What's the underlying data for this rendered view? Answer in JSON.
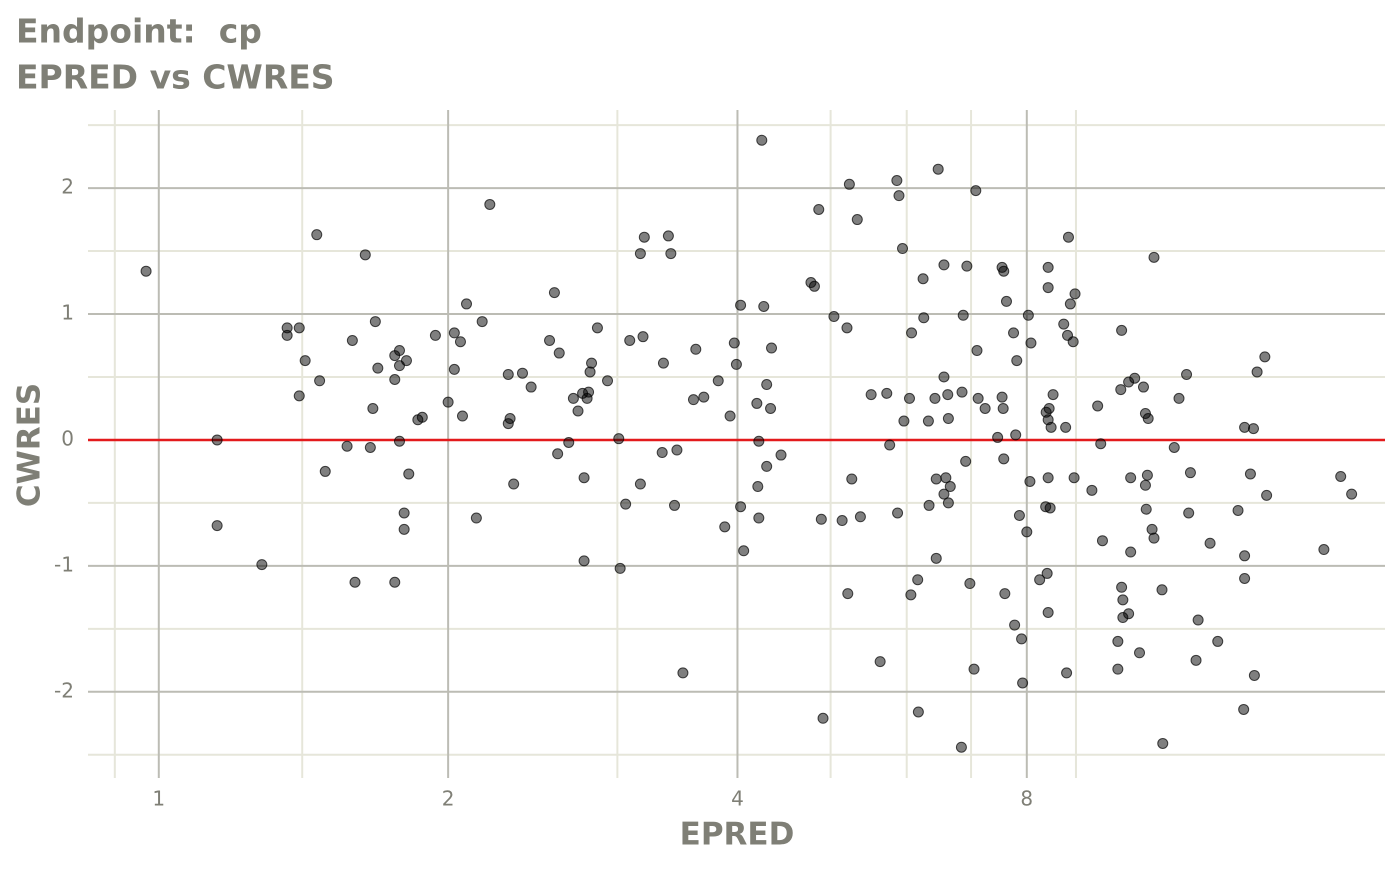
{
  "chart_data": {
    "type": "scatter",
    "title": "Endpoint:  cp",
    "subtitle": "EPRED vs CWRES",
    "x_label": "EPRED",
    "y_label": "CWRES",
    "x_log_base": 2,
    "xlim": [
      0.844,
      18.87
    ],
    "ylim": [
      -2.74,
      2.62
    ],
    "xticks": [
      1,
      2,
      4,
      8
    ],
    "yticks": [
      -2,
      -1,
      0,
      1,
      2
    ],
    "x_minor_grid": [
      0.9,
      1.41,
      3,
      5,
      6,
      7,
      9
    ],
    "y_minor_grid": [
      -2.5,
      -1.5,
      -0.5,
      0.5,
      1.5,
      2.5
    ],
    "grid": true,
    "color": "#000000",
    "opacity": 0.5,
    "hline": 0,
    "hline_color": "#e31a1c",
    "x": [
      0.97,
      1.15,
      1.15,
      1.28,
      1.36,
      1.36,
      1.4,
      1.4,
      1.42,
      1.46,
      1.47,
      1.49,
      1.57,
      1.59,
      1.6,
      1.64,
      1.66,
      1.67,
      1.68,
      1.69,
      1.76,
      1.76,
      1.76,
      1.78,
      1.78,
      1.78,
      1.8,
      1.8,
      1.81,
      1.82,
      1.86,
      1.88,
      1.94,
      2.0,
      2.03,
      2.03,
      2.06,
      2.07,
      2.09,
      2.14,
      2.17,
      2.21,
      2.31,
      2.31,
      2.32,
      2.34,
      2.39,
      2.44,
      2.55,
      2.58,
      2.6,
      2.61,
      2.67,
      2.7,
      2.73,
      2.76,
      2.77,
      2.77,
      2.79,
      2.8,
      2.81,
      2.82,
      2.86,
      2.93,
      3.01,
      3.02,
      3.06,
      3.09,
      3.17,
      3.17,
      3.19,
      3.2,
      3.34,
      3.35,
      3.39,
      3.41,
      3.44,
      3.46,
      3.51,
      3.6,
      3.62,
      3.69,
      3.82,
      3.88,
      3.93,
      3.97,
      3.99,
      4.03,
      4.03,
      4.06,
      4.19,
      4.21,
      4.2,
      4.21,
      4.24,
      4.26,
      4.29,
      4.29,
      4.33,
      4.34,
      4.44,
      4.77,
      4.81,
      4.86,
      4.89,
      4.91,
      5.04,
      5.14,
      5.2,
      5.21,
      5.23,
      5.26,
      5.33,
      5.37,
      5.51,
      5.63,
      5.72,
      5.76,
      5.86,
      5.87,
      5.89,
      5.94,
      5.96,
      6.04,
      6.06,
      6.07,
      6.16,
      6.17,
      6.24,
      6.25,
      6.32,
      6.33,
      6.42,
      6.44,
      6.44,
      6.47,
      6.56,
      6.56,
      6.56,
      6.59,
      6.62,
      6.63,
      6.63,
      6.66,
      6.85,
      6.87,
      6.84,
      6.91,
      6.93,
      6.98,
      7.05,
      7.08,
      7.1,
      7.12,
      7.24,
      7.46,
      7.54,
      7.54,
      7.56,
      7.57,
      7.57,
      7.59,
      7.62,
      7.75,
      7.77,
      7.79,
      7.81,
      7.86,
      7.9,
      7.92,
      8.0,
      8.03,
      8.06,
      8.08,
      8.25,
      8.37,
      8.38,
      8.4,
      8.42,
      8.42,
      8.42,
      8.42,
      8.42,
      8.44,
      8.46,
      8.48,
      8.52,
      8.74,
      8.78,
      8.8,
      8.82,
      8.84,
      8.88,
      8.94,
      8.96,
      8.98,
      9.35,
      9.48,
      9.55,
      9.59,
      9.95,
      9.95,
      10.02,
      10.04,
      10.04,
      10.07,
      10.07,
      10.21,
      10.21,
      10.26,
      10.26,
      10.36,
      10.48,
      10.58,
      10.63,
      10.63,
      10.65,
      10.68,
      10.7,
      10.8,
      10.85,
      10.85,
      11.06,
      11.08,
      11.39,
      11.52,
      11.73,
      11.79,
      11.84,
      12.0,
      12.06,
      12.41,
      12.64,
      13.27,
      13.45,
      13.48,
      13.48,
      13.48,
      13.67,
      13.77,
      13.8,
      13.89,
      14.15,
      14.21,
      16.3,
      16.97,
      17.42
    ],
    "y": [
      1.34,
      0.0,
      -0.68,
      -0.99,
      0.89,
      0.83,
      0.89,
      0.35,
      0.63,
      1.63,
      0.47,
      -0.25,
      -0.05,
      0.79,
      -1.13,
      1.47,
      -0.06,
      0.25,
      0.94,
      0.57,
      0.48,
      0.67,
      -1.13,
      0.59,
      0.71,
      -0.01,
      -0.71,
      -0.58,
      0.63,
      -0.27,
      0.16,
      0.18,
      0.83,
      0.3,
      0.56,
      0.85,
      0.78,
      0.19,
      1.08,
      -0.62,
      0.94,
      1.87,
      0.52,
      0.13,
      0.17,
      -0.35,
      0.53,
      0.42,
      0.79,
      1.17,
      -0.11,
      0.69,
      -0.02,
      0.33,
      0.23,
      0.37,
      -0.96,
      -0.3,
      0.33,
      0.38,
      0.54,
      0.61,
      0.89,
      0.47,
      0.01,
      -1.02,
      -0.51,
      0.79,
      1.48,
      -0.35,
      0.82,
      1.61,
      -0.1,
      0.61,
      1.62,
      1.48,
      -0.52,
      -0.08,
      -1.85,
      0.32,
      0.72,
      0.34,
      0.47,
      -0.69,
      0.19,
      0.77,
      0.6,
      -0.53,
      1.07,
      -0.88,
      0.29,
      -0.01,
      -0.37,
      -0.62,
      2.38,
      1.06,
      0.44,
      -0.21,
      0.25,
      0.73,
      -0.12,
      1.25,
      1.22,
      1.83,
      -0.63,
      -2.21,
      0.98,
      -0.64,
      0.89,
      -1.22,
      2.03,
      -0.31,
      1.75,
      -0.61,
      0.36,
      -1.76,
      0.37,
      -0.04,
      2.06,
      -0.58,
      1.94,
      1.52,
      0.15,
      0.33,
      -1.23,
      0.85,
      -1.11,
      -2.16,
      1.28,
      0.97,
      0.15,
      -0.52,
      0.33,
      -0.31,
      -0.94,
      2.15,
      1.39,
      0.5,
      -0.43,
      -0.3,
      0.36,
      0.17,
      -0.5,
      -0.37,
      0.38,
      0.99,
      -2.44,
      -0.17,
      1.38,
      -1.14,
      -1.82,
      1.98,
      0.71,
      0.33,
      0.25,
      0.02,
      1.37,
      0.34,
      0.25,
      1.34,
      -0.15,
      -1.22,
      1.1,
      0.85,
      -1.47,
      0.04,
      0.63,
      -0.6,
      -1.58,
      -1.93,
      -0.73,
      0.99,
      -0.33,
      0.77,
      -1.11,
      -0.53,
      0.22,
      -1.06,
      1.37,
      1.21,
      0.16,
      -0.3,
      -1.37,
      0.25,
      -0.54,
      0.1,
      0.36,
      0.92,
      0.1,
      -1.85,
      0.83,
      1.61,
      1.08,
      0.78,
      -0.3,
      1.16,
      -0.4,
      0.27,
      -0.03,
      -0.8,
      -1.82,
      -1.6,
      0.4,
      -1.17,
      0.87,
      -1.27,
      -1.41,
      0.46,
      -1.38,
      -0.3,
      -0.89,
      0.49,
      -1.69,
      0.42,
      0.21,
      -0.36,
      -0.55,
      -0.28,
      0.17,
      -0.71,
      1.45,
      -0.78,
      -1.19,
      -2.41,
      -0.06,
      0.33,
      0.52,
      -0.58,
      -0.26,
      -1.75,
      -1.43,
      -0.82,
      -1.6,
      -0.56,
      -2.14,
      -0.92,
      -1.1,
      0.1,
      -0.27,
      0.09,
      -1.87,
      0.54,
      0.66,
      -0.44,
      -0.87,
      -0.29,
      -0.43
    ]
  }
}
